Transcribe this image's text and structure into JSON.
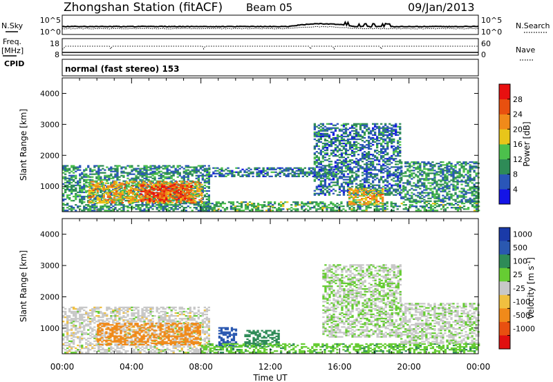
{
  "header": {
    "station": "Zhongshan Station (fitACF)",
    "beam": "Beam 05",
    "date": "09/Jan/2013"
  },
  "top_panel": {
    "left_label": "N.Sky",
    "left_ticks": [
      "10^5",
      "10^0"
    ],
    "right_ticks": [
      "10^5",
      "10^0"
    ],
    "right_label": "N.Search"
  },
  "freq_panel": {
    "left_label_1": "Freq.",
    "left_label_2": "[MHz]",
    "left_ticks": [
      "18",
      "8"
    ],
    "right_ticks": [
      "60",
      "0"
    ],
    "right_label": "Nave",
    "cpid_label": "CPID"
  },
  "cpid_text": "normal (fast stereo) 153",
  "x_axis": {
    "label": "Time UT",
    "ticks": [
      "00:00",
      "04:00",
      "08:00",
      "12:00",
      "16:00",
      "20:00",
      "00:00"
    ]
  },
  "y_axis": {
    "label": "Slant Range [km]",
    "ticks": [
      "1000",
      "2000",
      "3000",
      "4000"
    ]
  },
  "power_scale": {
    "label": "Power [dB]",
    "ticks": [
      "4",
      "8",
      "12",
      "16",
      "20",
      "24",
      "28"
    ],
    "colors": [
      "#1414e6",
      "#2a56b8",
      "#2e8b57",
      "#4cc04c",
      "#e8c51a",
      "#f08a1a",
      "#e8500f",
      "#e81010"
    ]
  },
  "velocity_scale": {
    "label": "Velocity [m s-1]",
    "label_main": "Velocity [m s",
    "label_exp": "-1",
    "label_close": "]",
    "ticks": [
      "1000",
      "500",
      "100",
      "25",
      "-25",
      "-100",
      "-500",
      "-1000"
    ],
    "colors": [
      "#1a3aa8",
      "#2a58b0",
      "#2e8b57",
      "#66cc33",
      "#c8c8c8",
      "#f0c040",
      "#f08a1a",
      "#e85010",
      "#e01010"
    ]
  },
  "chart_data": [
    {
      "type": "heatmap",
      "title": "Power [dB]",
      "xlabel": "Time UT",
      "ylabel": "Slant Range [km]",
      "x_range_hours": [
        0,
        24
      ],
      "ylim": [
        180,
        4500
      ],
      "colorbar_range": [
        0,
        32
      ],
      "regions": [
        {
          "t": [
            0.0,
            8.5
          ],
          "r": [
            200,
            1650
          ],
          "v": 10
        },
        {
          "t": [
            1.5,
            8.0
          ],
          "r": [
            450,
            1150
          ],
          "v": 20
        },
        {
          "t": [
            4.5,
            7.5
          ],
          "r": [
            500,
            1050
          ],
          "v": 27
        },
        {
          "t": [
            8.0,
            24.0
          ],
          "r": [
            200,
            500
          ],
          "v": 12
        },
        {
          "t": [
            8.3,
            16.0
          ],
          "r": [
            1300,
            1600
          ],
          "v": 8
        },
        {
          "t": [
            14.5,
            19.5
          ],
          "r": [
            700,
            3000
          ],
          "v": 8
        },
        {
          "t": [
            19.5,
            24.0
          ],
          "r": [
            500,
            1800
          ],
          "v": 10
        },
        {
          "t": [
            16.5,
            18.5
          ],
          "r": [
            400,
            900
          ],
          "v": 20
        }
      ]
    },
    {
      "type": "heatmap",
      "title": "Velocity [m s-1]",
      "xlabel": "Time UT",
      "ylabel": "Slant Range [km]",
      "x_range_hours": [
        0,
        24
      ],
      "ylim": [
        180,
        4500
      ],
      "regions": [
        {
          "t": [
            0.0,
            8.5
          ],
          "r": [
            200,
            1650
          ],
          "v": 0
        },
        {
          "t": [
            2.0,
            8.0
          ],
          "r": [
            450,
            1150
          ],
          "v": -300
        },
        {
          "t": [
            9.0,
            10.0
          ],
          "r": [
            400,
            1000
          ],
          "v": 600
        },
        {
          "t": [
            10.5,
            12.5
          ],
          "r": [
            400,
            900
          ],
          "v": 400
        },
        {
          "t": [
            8.0,
            24.0
          ],
          "r": [
            200,
            500
          ],
          "v": 80
        },
        {
          "t": [
            15.0,
            19.5
          ],
          "r": [
            700,
            3000
          ],
          "v": 20
        },
        {
          "t": [
            19.5,
            24.0
          ],
          "r": [
            500,
            1800
          ],
          "v": 10
        }
      ]
    }
  ]
}
